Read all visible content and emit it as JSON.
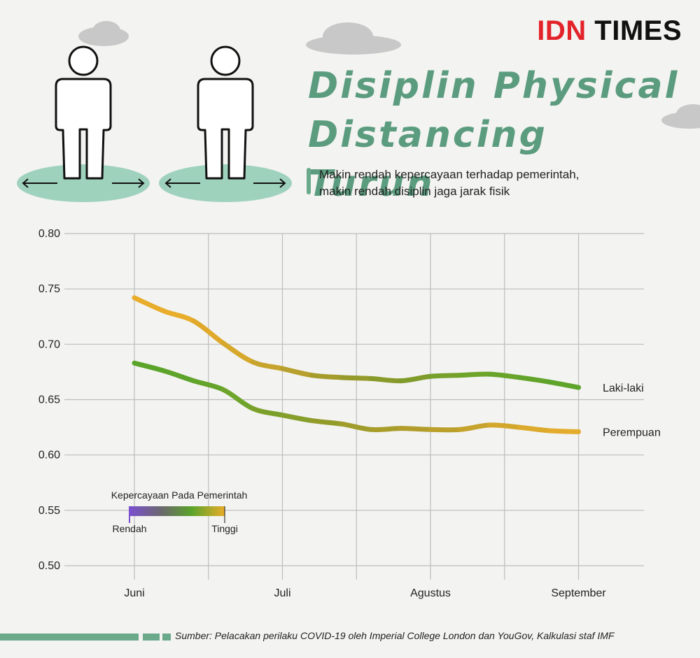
{
  "brand": {
    "part1": "IDN",
    "part2": "TIMES"
  },
  "header": {
    "title_line1": "Disiplin Physical",
    "title_line2": "Distancing Turun",
    "subtitle_line1": "Makin rendah kepercayaan terhadap pemerintah,",
    "subtitle_line2": "makin rendah disiplin jaga jarak fisik"
  },
  "legend": {
    "title": "Kepercayaan Pada Pemerintah",
    "low": "Rendah",
    "high": "Tinggi",
    "gradient": [
      "#7b4fcf",
      "#6a6a6a",
      "#5aa32a",
      "#e8ad2a"
    ]
  },
  "colors": {
    "accent": "#5b9c7e",
    "grid": "#bdbdbd",
    "brand_red": "#e3232a"
  },
  "source": "Sumber: Pelacakan perilaku COVID-19 oleh Imperial College London dan YouGov, Kalkulasi staf IMF",
  "chart_data": {
    "type": "line",
    "title": "Disiplin Physical Distancing Turun",
    "x_ticks": [
      "Juni",
      "Juli",
      "Agustus",
      "September"
    ],
    "ylim": [
      0.5,
      0.8
    ],
    "y_ticks": [
      "0.80",
      "0.75",
      "0.70",
      "0.65",
      "0.60",
      "0.55",
      "0.50"
    ],
    "grid": true,
    "series": [
      {
        "name": "Laki-laki",
        "x": [
          0,
          0.2,
          0.4,
          0.6,
          0.8,
          1.0,
          1.2,
          1.4,
          1.6,
          1.8,
          2.0,
          2.2,
          2.4,
          2.6,
          2.8,
          3.0
        ],
        "y": [
          0.742,
          0.73,
          0.721,
          0.701,
          0.684,
          0.678,
          0.672,
          0.67,
          0.669,
          0.667,
          0.671,
          0.672,
          0.673,
          0.67,
          0.666,
          0.661
        ],
        "colors": [
          "#e8ad2a",
          "#e8ad2a",
          "#e0a92b",
          "#d6a82c",
          "#c7a42d",
          "#b7a02d",
          "#a59c2c",
          "#959a2b",
          "#889a2a",
          "#7f9b2a",
          "#76a02a",
          "#6ea42a",
          "#68a42a",
          "#62a42a",
          "#5ea42a",
          "#5aa42a"
        ]
      },
      {
        "name": "Perempuan",
        "x": [
          0,
          0.2,
          0.4,
          0.6,
          0.8,
          1.0,
          1.2,
          1.4,
          1.6,
          1.8,
          2.0,
          2.2,
          2.4,
          2.6,
          2.8,
          3.0
        ],
        "y": [
          0.683,
          0.676,
          0.667,
          0.659,
          0.642,
          0.636,
          0.631,
          0.628,
          0.623,
          0.624,
          0.623,
          0.623,
          0.627,
          0.625,
          0.622,
          0.621
        ],
        "colors": [
          "#5aa42a",
          "#5ea42a",
          "#64a42a",
          "#6ea42a",
          "#7aa02a",
          "#869e2a",
          "#939c2a",
          "#9f9c2b",
          "#a89c2b",
          "#b29d2c",
          "#bca02c",
          "#c6a32c",
          "#d2a72c",
          "#dcaa2c",
          "#e4ac2c",
          "#e8ad2a"
        ]
      }
    ]
  }
}
